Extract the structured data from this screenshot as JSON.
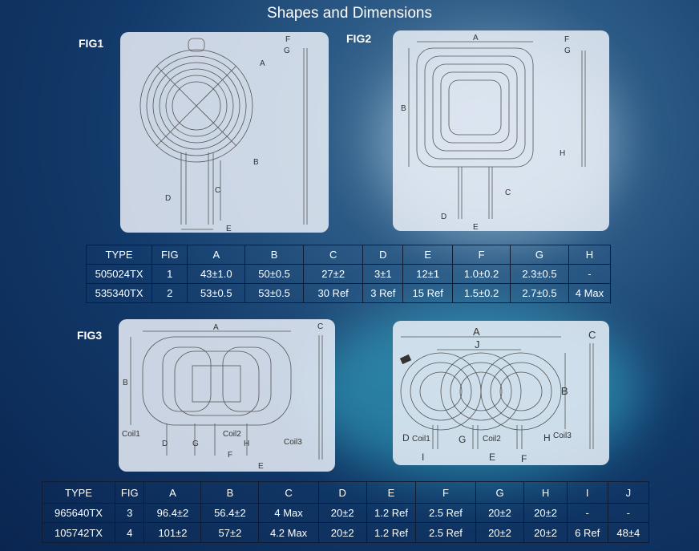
{
  "title": "Shapes and Dimensions",
  "figs": {
    "fig1": "FIG1",
    "fig2": "FIG2",
    "fig3": "FIG3"
  },
  "labels": {
    "A": "A",
    "B": "B",
    "C": "C",
    "D": "D",
    "E": "E",
    "F": "F",
    "G": "G",
    "H": "H",
    "I": "I",
    "J": "J",
    "coil1": "Coil1",
    "coil2": "Coil2",
    "coil3": "Coil3"
  },
  "table1": {
    "headers": [
      "TYPE",
      "FIG",
      "A",
      "B",
      "C",
      "D",
      "E",
      "F",
      "G",
      "H"
    ],
    "rows": [
      [
        "505024TX",
        "1",
        "43±1.0",
        "50±0.5",
        "27±2",
        "3±1",
        "12±1",
        "1.0±0.2",
        "2.3±0.5",
        "-"
      ],
      [
        "535340TX",
        "2",
        "53±0.5",
        "53±0.5",
        "30 Ref",
        "3 Ref",
        "15 Ref",
        "1.5±0.2",
        "2.7±0.5",
        "4 Max"
      ]
    ]
  },
  "table2": {
    "headers": [
      "TYPE",
      "FIG",
      "A",
      "B",
      "C",
      "D",
      "E",
      "F",
      "G",
      "H",
      "I",
      "J"
    ],
    "rows": [
      [
        "965640TX",
        "3",
        "96.4±2",
        "56.4±2",
        "4 Max",
        "20±2",
        "1.2 Ref",
        "2.5 Ref",
        "20±2",
        "20±2",
        "-",
        "-"
      ],
      [
        "105742TX",
        "4",
        "101±2",
        "57±2",
        "4.2 Max",
        "20±2",
        "1.2 Ref",
        "2.5 Ref",
        "20±2",
        "20±2",
        "6 Ref",
        "48±4"
      ]
    ]
  }
}
